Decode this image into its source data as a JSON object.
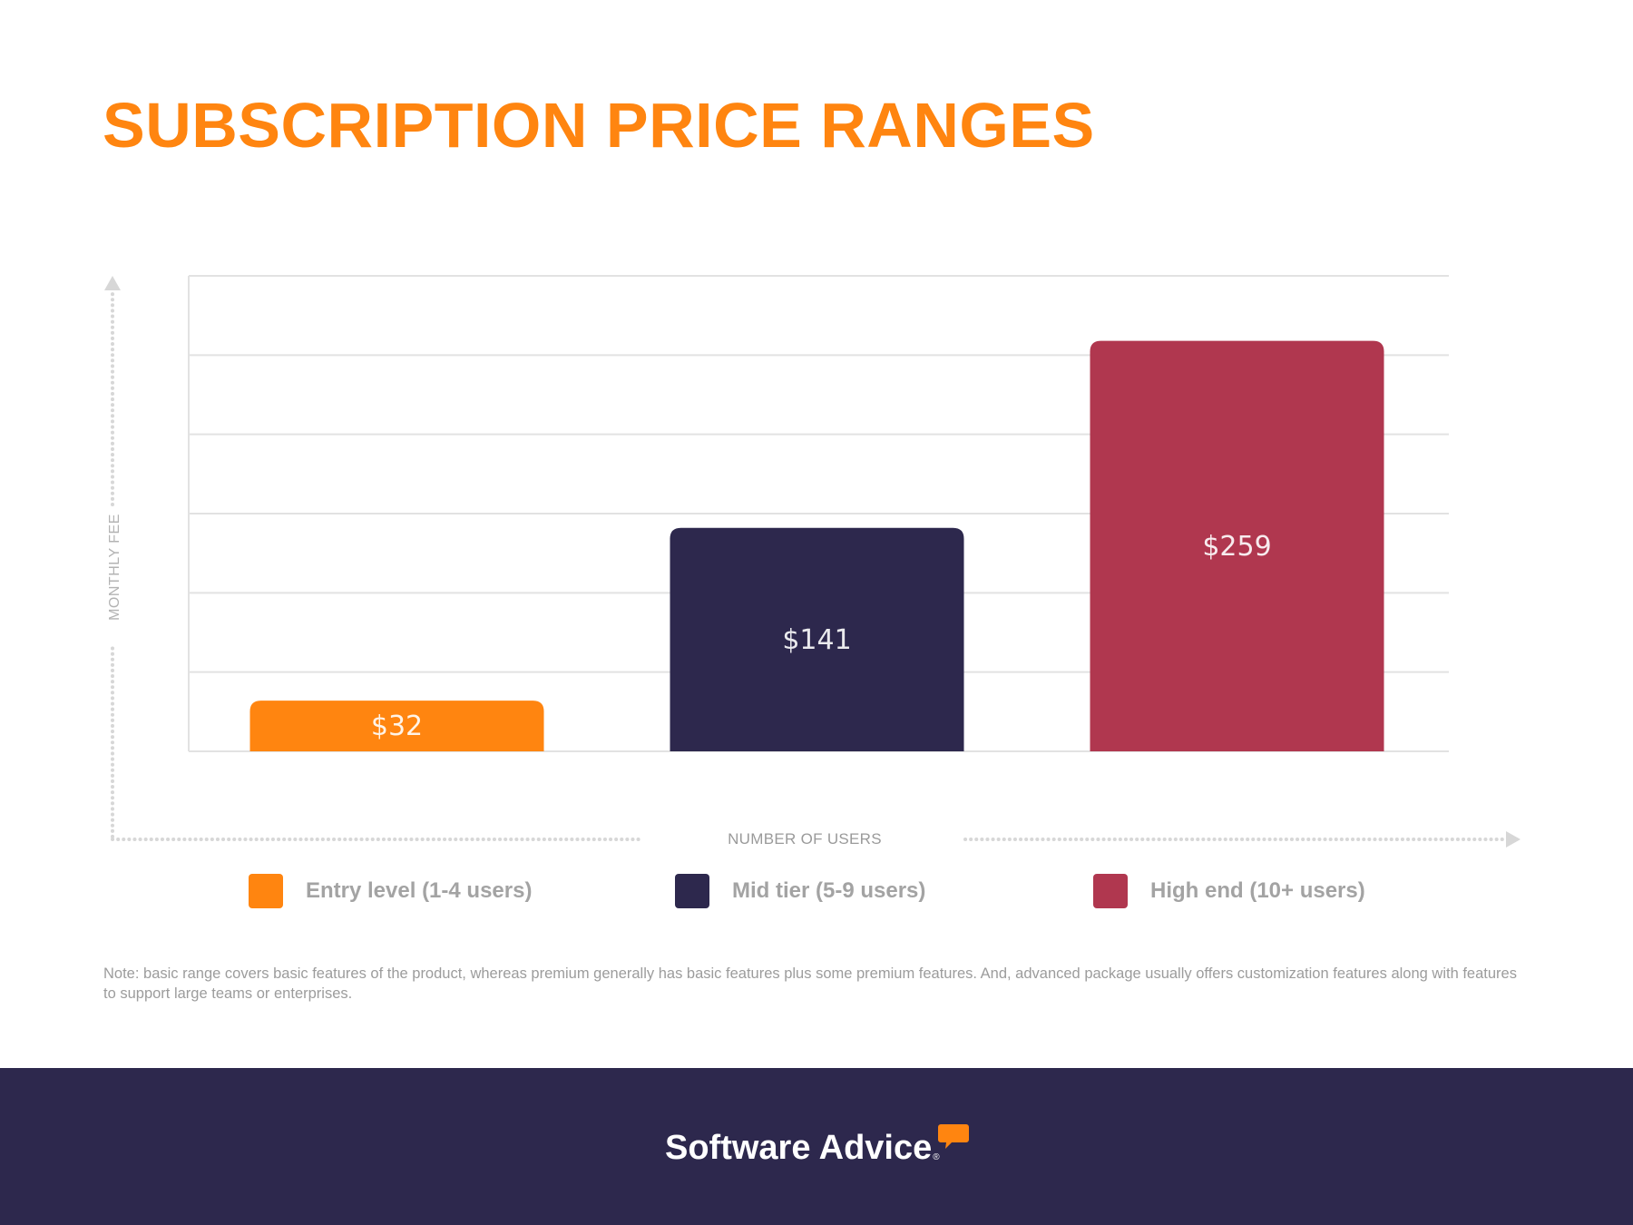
{
  "page": {
    "title": "SUBSCRIPTION PRICE RANGES",
    "note": "Note: basic range covers basic features of the product, whereas premium generally has basic features plus some premium features. And, advanced package usually offers customization features along with features to support large teams or enterprises.",
    "footer": {
      "brand": "Software Advice",
      "registered": "®"
    }
  },
  "chart_data": {
    "type": "bar",
    "title": "SUBSCRIPTION PRICE RANGES",
    "xlabel": "NUMBER OF USERS",
    "ylabel": "MONTHLY FEE",
    "ylim": [
      0,
      300
    ],
    "y_gridlines": [
      0,
      50,
      100,
      150,
      200,
      250,
      300
    ],
    "categories": [
      "Entry level (1-4 users)",
      "Mid tier (5-9 users)",
      "High end (10+ users)"
    ],
    "values": [
      32,
      141,
      259
    ],
    "value_labels": [
      "$32",
      "$141",
      "$259"
    ],
    "colors": [
      "#ff8510",
      "#2d284d",
      "#b0374f"
    ],
    "legend": [
      {
        "label": "Entry level (1-4 users)",
        "color": "#ff8510"
      },
      {
        "label": "Mid tier (5-9 users)",
        "color": "#2d284d"
      },
      {
        "label": "High end (10+ users)",
        "color": "#b0374f"
      }
    ],
    "legend_position": "bottom"
  }
}
